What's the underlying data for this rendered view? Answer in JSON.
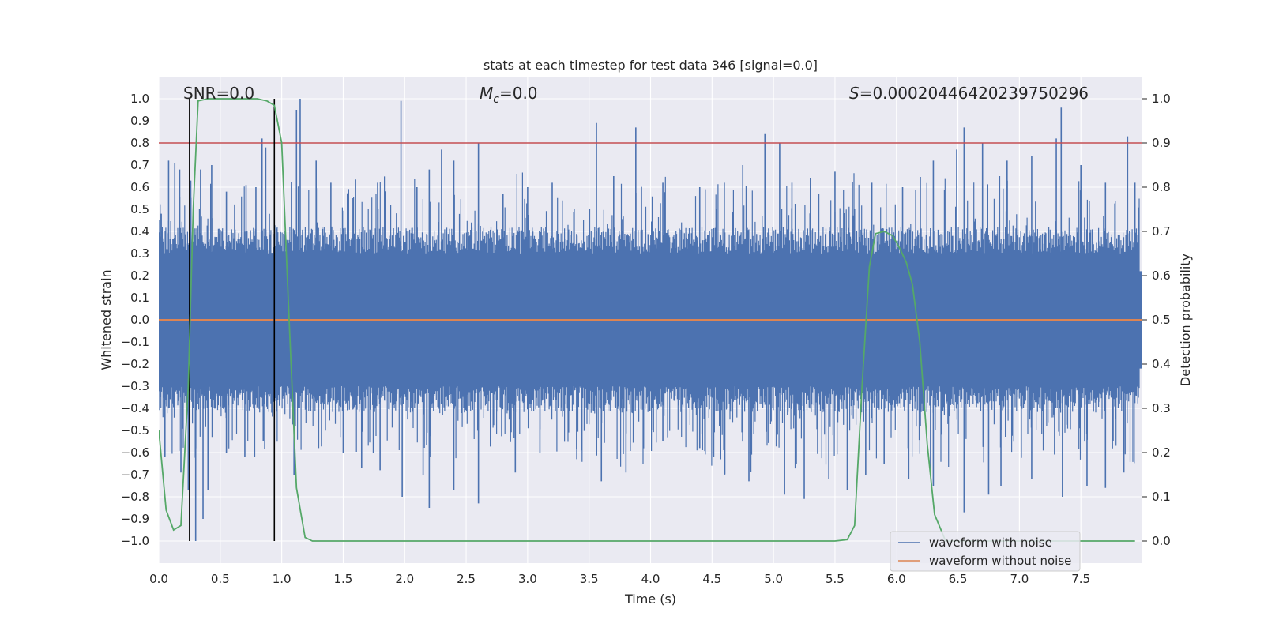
{
  "chart_data": {
    "type": "line",
    "title": "stats at each timestep for test data 346 [signal=0.0]",
    "xlabel": "Time (s)",
    "ylabel": "Whitened strain",
    "y2label": "Detection probability",
    "xlim": [
      0.0,
      8.0
    ],
    "ylim": [
      -1.1,
      1.1
    ],
    "y2lim": [
      -0.05,
      1.05
    ],
    "x_ticks": [
      0.0,
      0.5,
      1.0,
      1.5,
      2.0,
      2.5,
      3.0,
      3.5,
      4.0,
      4.5,
      5.0,
      5.5,
      6.0,
      6.5,
      7.0,
      7.5
    ],
    "y_ticks": [
      -1.0,
      -0.9,
      -0.8,
      -0.7,
      -0.6,
      -0.5,
      -0.4,
      -0.3,
      -0.2,
      -0.1,
      0.0,
      0.1,
      0.2,
      0.3,
      0.4,
      0.5,
      0.6,
      0.7,
      0.8,
      0.9,
      1.0
    ],
    "y2_ticks": [
      0.0,
      0.1,
      0.2,
      0.3,
      0.4,
      0.5,
      0.6,
      0.7,
      0.8,
      0.9,
      1.0
    ],
    "annotations": {
      "snr": "SNR=0.0",
      "mc_symbol": "M",
      "mc_sub": "c",
      "mc_value": "=0.0",
      "s_symbol": "S",
      "s_value": "=0.00020446420239750296"
    },
    "threshold_line": {
      "axis": "y2",
      "value": 0.9,
      "color": "#c44e52"
    },
    "vertical_markers": [
      0.25,
      0.94
    ],
    "noise_envelope": {
      "typical_abs": 0.4,
      "peak_max": 1.0,
      "peak_min": -1.0
    },
    "series": [
      {
        "name": "waveform with noise",
        "color": "#4c72b0",
        "axis": "y",
        "spikes_up": [
          {
            "x": 0.02,
            "y": 0.48
          },
          {
            "x": 0.08,
            "y": 0.72
          },
          {
            "x": 0.13,
            "y": 0.71
          },
          {
            "x": 0.17,
            "y": 0.68
          },
          {
            "x": 0.26,
            "y": 0.63
          },
          {
            "x": 0.34,
            "y": 0.68
          },
          {
            "x": 0.43,
            "y": 0.7
          },
          {
            "x": 0.55,
            "y": 0.58
          },
          {
            "x": 0.71,
            "y": 0.61
          },
          {
            "x": 0.79,
            "y": 0.6
          },
          {
            "x": 0.84,
            "y": 0.82
          },
          {
            "x": 0.87,
            "y": 0.78
          },
          {
            "x": 1.12,
            "y": 0.95
          },
          {
            "x": 1.15,
            "y": 1.0
          },
          {
            "x": 1.28,
            "y": 0.72
          },
          {
            "x": 1.4,
            "y": 0.62
          },
          {
            "x": 1.58,
            "y": 0.55
          },
          {
            "x": 1.78,
            "y": 0.62
          },
          {
            "x": 1.97,
            "y": 0.99
          },
          {
            "x": 2.1,
            "y": 0.6
          },
          {
            "x": 2.2,
            "y": 0.68
          },
          {
            "x": 2.3,
            "y": 0.77
          },
          {
            "x": 2.4,
            "y": 0.72
          },
          {
            "x": 2.6,
            "y": 0.8
          },
          {
            "x": 2.8,
            "y": 0.57
          },
          {
            "x": 3.0,
            "y": 0.6
          },
          {
            "x": 3.2,
            "y": 0.62
          },
          {
            "x": 3.56,
            "y": 0.89
          },
          {
            "x": 3.7,
            "y": 0.65
          },
          {
            "x": 3.88,
            "y": 0.87
          },
          {
            "x": 4.1,
            "y": 0.62
          },
          {
            "x": 4.4,
            "y": 0.6
          },
          {
            "x": 4.6,
            "y": 0.62
          },
          {
            "x": 4.75,
            "y": 0.7
          },
          {
            "x": 4.93,
            "y": 0.84
          },
          {
            "x": 5.05,
            "y": 0.8
          },
          {
            "x": 5.15,
            "y": 0.62
          },
          {
            "x": 5.3,
            "y": 0.64
          },
          {
            "x": 5.5,
            "y": 0.67
          },
          {
            "x": 5.8,
            "y": 0.62
          },
          {
            "x": 6.05,
            "y": 0.6
          },
          {
            "x": 6.3,
            "y": 0.72
          },
          {
            "x": 6.49,
            "y": 0.77
          },
          {
            "x": 6.55,
            "y": 0.87
          },
          {
            "x": 6.7,
            "y": 0.8
          },
          {
            "x": 6.9,
            "y": 0.72
          },
          {
            "x": 7.1,
            "y": 0.74
          },
          {
            "x": 7.3,
            "y": 0.82
          },
          {
            "x": 7.34,
            "y": 0.96
          },
          {
            "x": 7.5,
            "y": 0.7
          },
          {
            "x": 7.7,
            "y": 0.62
          },
          {
            "x": 7.88,
            "y": 0.83
          },
          {
            "x": 7.94,
            "y": 0.62
          }
        ],
        "spikes_down": [
          {
            "x": 0.05,
            "y": -0.62
          },
          {
            "x": 0.18,
            "y": -0.69
          },
          {
            "x": 0.24,
            "y": -0.77
          },
          {
            "x": 0.3,
            "y": -1.0
          },
          {
            "x": 0.36,
            "y": -0.9
          },
          {
            "x": 0.4,
            "y": -0.77
          },
          {
            "x": 0.55,
            "y": -0.6
          },
          {
            "x": 0.7,
            "y": -0.62
          },
          {
            "x": 0.85,
            "y": -0.55
          },
          {
            "x": 1.1,
            "y": -0.7
          },
          {
            "x": 1.3,
            "y": -0.58
          },
          {
            "x": 1.5,
            "y": -0.6
          },
          {
            "x": 1.65,
            "y": -0.67
          },
          {
            "x": 1.8,
            "y": -0.68
          },
          {
            "x": 1.98,
            "y": -0.8
          },
          {
            "x": 2.15,
            "y": -0.7
          },
          {
            "x": 2.2,
            "y": -0.85
          },
          {
            "x": 2.4,
            "y": -0.77
          },
          {
            "x": 2.6,
            "y": -0.83
          },
          {
            "x": 2.9,
            "y": -0.69
          },
          {
            "x": 3.1,
            "y": -0.6
          },
          {
            "x": 3.4,
            "y": -0.63
          },
          {
            "x": 3.6,
            "y": -0.73
          },
          {
            "x": 3.8,
            "y": -0.69
          },
          {
            "x": 4.1,
            "y": -0.55
          },
          {
            "x": 4.4,
            "y": -0.58
          },
          {
            "x": 4.6,
            "y": -0.7
          },
          {
            "x": 4.8,
            "y": -0.73
          },
          {
            "x": 5.09,
            "y": -0.79
          },
          {
            "x": 5.25,
            "y": -0.81
          },
          {
            "x": 5.45,
            "y": -0.72
          },
          {
            "x": 5.6,
            "y": -0.77
          },
          {
            "x": 5.75,
            "y": -0.7
          },
          {
            "x": 5.9,
            "y": -0.65
          },
          {
            "x": 6.1,
            "y": -0.72
          },
          {
            "x": 6.3,
            "y": -0.75
          },
          {
            "x": 6.55,
            "y": -0.87
          },
          {
            "x": 6.75,
            "y": -0.79
          },
          {
            "x": 6.85,
            "y": -0.75
          },
          {
            "x": 7.1,
            "y": -0.72
          },
          {
            "x": 7.35,
            "y": -0.8
          },
          {
            "x": 7.55,
            "y": -0.75
          },
          {
            "x": 7.7,
            "y": -0.76
          },
          {
            "x": 7.85,
            "y": -0.69
          }
        ]
      },
      {
        "name": "waveform without noise",
        "color": "#dd8452",
        "axis": "y",
        "x": [
          0.0,
          8.0
        ],
        "y": [
          0.0,
          0.0
        ]
      },
      {
        "name": "detection probability",
        "color": "#55a868",
        "axis": "y2",
        "x": [
          0.0,
          0.06,
          0.12,
          0.18,
          0.24,
          0.28,
          0.32,
          0.4,
          0.6,
          0.8,
          0.88,
          0.94,
          1.0,
          1.06,
          1.12,
          1.19,
          1.25,
          1.5,
          2.0,
          3.0,
          4.0,
          5.0,
          5.5,
          5.6,
          5.66,
          5.72,
          5.78,
          5.83,
          5.9,
          5.97,
          6.03,
          6.08,
          6.13,
          6.19,
          6.25,
          6.31,
          6.4,
          7.0,
          7.94
        ],
        "y": [
          0.25,
          0.07,
          0.025,
          0.035,
          0.35,
          0.75,
          0.995,
          1.0,
          1.0,
          1.0,
          0.995,
          0.985,
          0.9,
          0.5,
          0.12,
          0.008,
          0.0,
          0.0,
          0.0,
          0.0,
          0.0,
          0.0,
          0.0,
          0.003,
          0.035,
          0.35,
          0.62,
          0.695,
          0.7,
          0.69,
          0.66,
          0.63,
          0.58,
          0.45,
          0.22,
          0.06,
          0.0,
          0.0,
          0.0
        ]
      }
    ]
  }
}
